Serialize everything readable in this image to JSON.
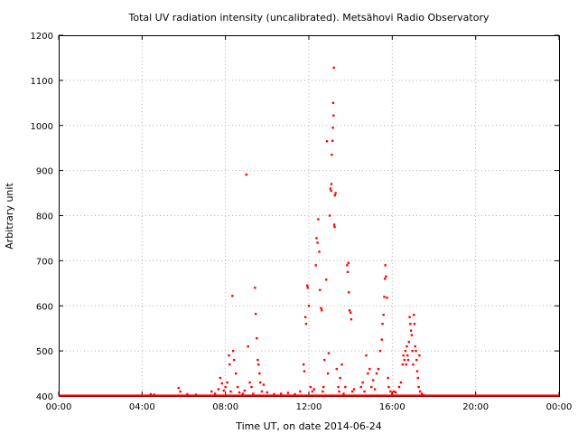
{
  "chart_data": {
    "type": "scatter",
    "title": "Total UV radiation intensity (uncalibrated). Metsähovi Radio Observatory",
    "xlabel": "Time UT, on date 2014-06-24",
    "ylabel": "Arbitrary unit",
    "xlim": [
      "00:00",
      "24:00"
    ],
    "ylim": [
      400,
      1200
    ],
    "x_tick_labels": [
      "00:00",
      "04:00",
      "08:00",
      "12:00",
      "16:00",
      "20:00",
      "00:00"
    ],
    "y_tick_labels": [
      "400",
      "500",
      "600",
      "700",
      "800",
      "900",
      "1000",
      "1100",
      "1200"
    ],
    "grid": true,
    "series": [
      {
        "color": "#ff0000",
        "marker": "dot",
        "baseline": {
          "y": 401,
          "x_start": "00:00",
          "x_end": "24:00"
        },
        "points": [
          [
            "04:25",
            404
          ],
          [
            "04:35",
            403
          ],
          [
            "05:45",
            418
          ],
          [
            "05:50",
            410
          ],
          [
            "06:10",
            404
          ],
          [
            "06:35",
            403
          ],
          [
            "07:20",
            410
          ],
          [
            "07:30",
            405
          ],
          [
            "07:40",
            415
          ],
          [
            "07:45",
            440
          ],
          [
            "07:50",
            428
          ],
          [
            "07:55",
            412
          ],
          [
            "08:00",
            420
          ],
          [
            "08:05",
            430
          ],
          [
            "08:10",
            490
          ],
          [
            "08:12",
            470
          ],
          [
            "08:15",
            410
          ],
          [
            "08:20",
            622
          ],
          [
            "08:22",
            500
          ],
          [
            "08:25",
            480
          ],
          [
            "08:30",
            450
          ],
          [
            "08:35",
            420
          ],
          [
            "08:40",
            408
          ],
          [
            "08:50",
            405
          ],
          [
            "08:55",
            412
          ],
          [
            "09:00",
            891
          ],
          [
            "09:05",
            510
          ],
          [
            "09:10",
            430
          ],
          [
            "09:15",
            420
          ],
          [
            "09:20",
            405
          ],
          [
            "09:25",
            640
          ],
          [
            "09:27",
            582
          ],
          [
            "09:30",
            528
          ],
          [
            "09:33",
            480
          ],
          [
            "09:35",
            470
          ],
          [
            "09:38",
            450
          ],
          [
            "09:40",
            430
          ],
          [
            "09:45",
            410
          ],
          [
            "09:50",
            425
          ],
          [
            "10:00",
            408
          ],
          [
            "10:20",
            404
          ],
          [
            "10:40",
            405
          ],
          [
            "11:00",
            407
          ],
          [
            "11:20",
            404
          ],
          [
            "11:35",
            410
          ],
          [
            "11:45",
            470
          ],
          [
            "11:47",
            455
          ],
          [
            "11:50",
            575
          ],
          [
            "11:52",
            560
          ],
          [
            "11:55",
            645
          ],
          [
            "11:57",
            640
          ],
          [
            "12:00",
            600
          ],
          [
            "12:05",
            420
          ],
          [
            "12:10",
            410
          ],
          [
            "12:15",
            415
          ],
          [
            "12:20",
            690
          ],
          [
            "12:22",
            750
          ],
          [
            "12:25",
            740
          ],
          [
            "12:27",
            792
          ],
          [
            "12:30",
            720
          ],
          [
            "12:32",
            635
          ],
          [
            "12:35",
            595
          ],
          [
            "12:37",
            590
          ],
          [
            "12:40",
            410
          ],
          [
            "12:42",
            420
          ],
          [
            "12:45",
            480
          ],
          [
            "12:50",
            658
          ],
          [
            "12:52",
            965
          ],
          [
            "12:55",
            450
          ],
          [
            "12:57",
            495
          ],
          [
            "13:00",
            800
          ],
          [
            "13:02",
            860
          ],
          [
            "13:04",
            855
          ],
          [
            "13:05",
            870
          ],
          [
            "13:06",
            935
          ],
          [
            "13:08",
            966
          ],
          [
            "13:09",
            995
          ],
          [
            "13:10",
            1050
          ],
          [
            "13:11",
            1022
          ],
          [
            "13:12",
            1128
          ],
          [
            "13:13",
            780
          ],
          [
            "13:14",
            775
          ],
          [
            "13:15",
            845
          ],
          [
            "13:17",
            850
          ],
          [
            "13:20",
            460
          ],
          [
            "13:25",
            420
          ],
          [
            "13:27",
            410
          ],
          [
            "13:30",
            440
          ],
          [
            "13:35",
            470
          ],
          [
            "13:40",
            405
          ],
          [
            "13:45",
            420
          ],
          [
            "13:50",
            690
          ],
          [
            "13:52",
            675
          ],
          [
            "13:54",
            695
          ],
          [
            "13:55",
            630
          ],
          [
            "13:57",
            590
          ],
          [
            "14:00",
            585
          ],
          [
            "14:02",
            570
          ],
          [
            "14:05",
            410
          ],
          [
            "14:10",
            415
          ],
          [
            "14:30",
            420
          ],
          [
            "14:35",
            430
          ],
          [
            "14:40",
            410
          ],
          [
            "14:45",
            490
          ],
          [
            "14:50",
            450
          ],
          [
            "14:55",
            460
          ],
          [
            "15:00",
            420
          ],
          [
            "15:05",
            435
          ],
          [
            "15:10",
            415
          ],
          [
            "15:15",
            450
          ],
          [
            "15:20",
            460
          ],
          [
            "15:25",
            500
          ],
          [
            "15:30",
            525
          ],
          [
            "15:32",
            560
          ],
          [
            "15:35",
            580
          ],
          [
            "15:37",
            620
          ],
          [
            "15:39",
            660
          ],
          [
            "15:40",
            690
          ],
          [
            "15:42",
            665
          ],
          [
            "15:45",
            618
          ],
          [
            "15:48",
            440
          ],
          [
            "15:50",
            420
          ],
          [
            "15:55",
            410
          ],
          [
            "16:00",
            405
          ],
          [
            "16:05",
            410
          ],
          [
            "16:10",
            408
          ],
          [
            "16:20",
            420
          ],
          [
            "16:25",
            430
          ],
          [
            "16:30",
            470
          ],
          [
            "16:32",
            490
          ],
          [
            "16:35",
            480
          ],
          [
            "16:38",
            500
          ],
          [
            "16:40",
            470
          ],
          [
            "16:42",
            510
          ],
          [
            "16:44",
            490
          ],
          [
            "16:46",
            480
          ],
          [
            "16:48",
            520
          ],
          [
            "16:50",
            575
          ],
          [
            "16:52",
            560
          ],
          [
            "16:54",
            545
          ],
          [
            "16:56",
            535
          ],
          [
            "16:58",
            500
          ],
          [
            "17:00",
            470
          ],
          [
            "17:02",
            580
          ],
          [
            "17:04",
            560
          ],
          [
            "17:06",
            510
          ],
          [
            "17:08",
            500
          ],
          [
            "17:10",
            480
          ],
          [
            "17:12",
            455
          ],
          [
            "17:14",
            440
          ],
          [
            "17:16",
            420
          ],
          [
            "17:18",
            490
          ],
          [
            "17:20",
            410
          ],
          [
            "17:25",
            405
          ],
          [
            "17:30",
            402
          ]
        ]
      }
    ]
  }
}
